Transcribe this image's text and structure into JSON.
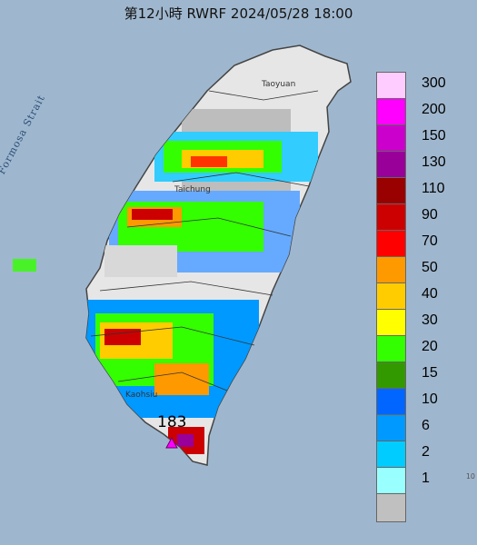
{
  "title": "第12小時  RWRF 2024/05/28 18:00",
  "strait_label": "Formosa Strait",
  "cities": {
    "taoyuan": "Taoyuan",
    "taichung": "Taichung",
    "kaohsiung": "Kaohsiu"
  },
  "max_value": "183",
  "edge_text": "10",
  "legend": {
    "items": [
      {
        "label": "300",
        "color": "#ffccff"
      },
      {
        "label": "200",
        "color": "#ff00ff"
      },
      {
        "label": "150",
        "color": "#cc00cc"
      },
      {
        "label": "130",
        "color": "#990099"
      },
      {
        "label": "110",
        "color": "#990000"
      },
      {
        "label": "90",
        "color": "#cc0000"
      },
      {
        "label": "70",
        "color": "#ff0000"
      },
      {
        "label": "50",
        "color": "#ff9900"
      },
      {
        "label": "40",
        "color": "#ffcc00"
      },
      {
        "label": "30",
        "color": "#ffff00"
      },
      {
        "label": "20",
        "color": "#33ff00"
      },
      {
        "label": "15",
        "color": "#339900"
      },
      {
        "label": "10",
        "color": "#0066ff"
      },
      {
        "label": "6",
        "color": "#0099ff"
      },
      {
        "label": "2",
        "color": "#00ccff"
      },
      {
        "label": "1",
        "color": "#99ffff"
      },
      {
        "label": "",
        "color": "#c0c0c0"
      }
    ]
  }
}
